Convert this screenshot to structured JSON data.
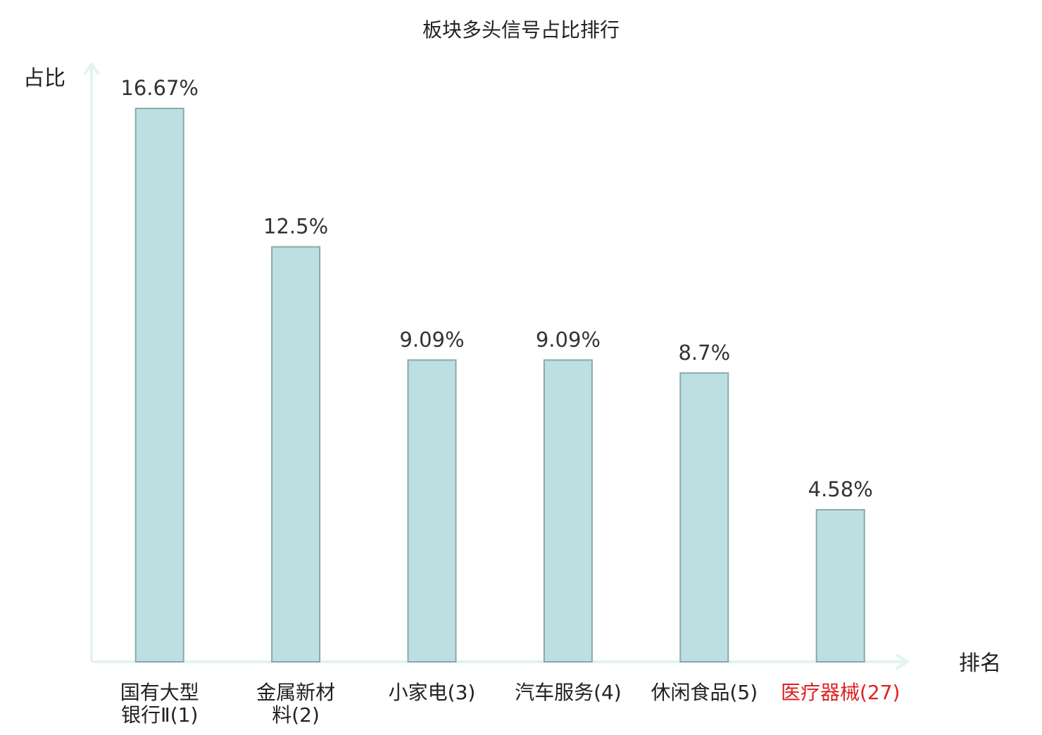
{
  "chart_data": {
    "type": "bar",
    "title": "板块多头信号占比排行",
    "ylabel": "占比",
    "xlabel": "排名",
    "categories": [
      {
        "lines": [
          "国有大型",
          "银行Ⅱ(1)"
        ],
        "highlight": false
      },
      {
        "lines": [
          "金属新材",
          "料(2)"
        ],
        "highlight": false
      },
      {
        "lines": [
          "小家电(3)"
        ],
        "highlight": false
      },
      {
        "lines": [
          "汽车服务(4)"
        ],
        "highlight": false
      },
      {
        "lines": [
          "休闲食品(5)"
        ],
        "highlight": false
      },
      {
        "lines": [
          "医疗器械(27)"
        ],
        "highlight": true
      }
    ],
    "values": [
      16.67,
      12.5,
      9.09,
      9.09,
      8.7,
      4.58
    ],
    "value_labels": [
      "16.67%",
      "12.5%",
      "9.09%",
      "9.09%",
      "8.7%",
      "4.58%"
    ],
    "ylim": [
      0,
      16.67
    ],
    "grid": false,
    "colors": {
      "bar_fill": "#bce0e2",
      "bar_stroke": "#8aa9aa",
      "axis": "#e3f3f1",
      "text": "#222222",
      "value_label": "#333333",
      "highlight": "#e02020"
    }
  }
}
